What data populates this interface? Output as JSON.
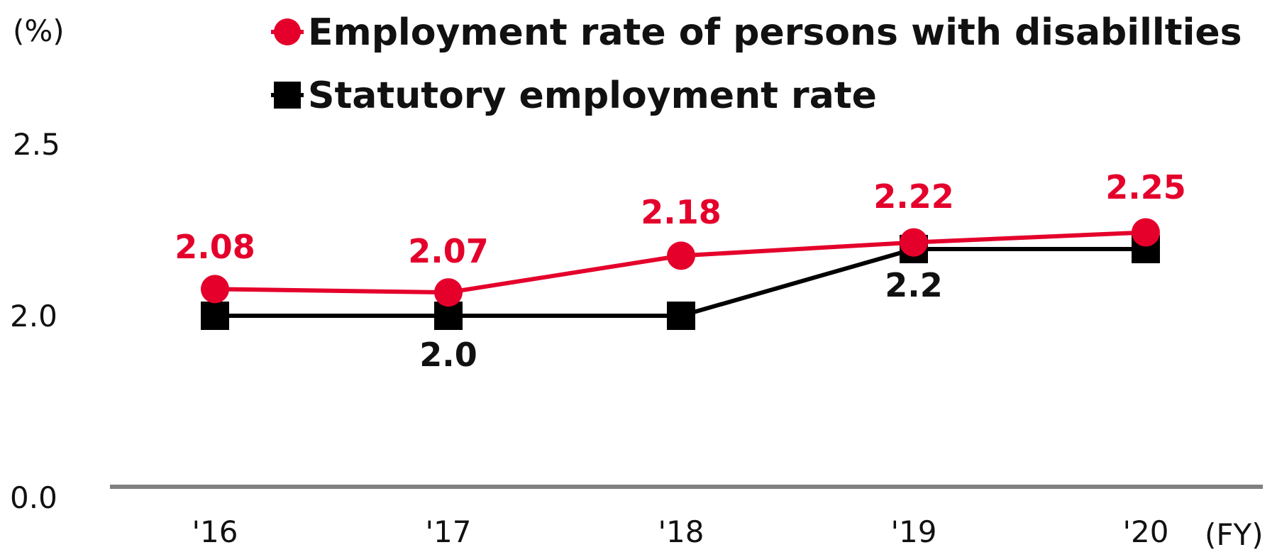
{
  "chart_data": {
    "type": "line",
    "categories": [
      "'16",
      "'17",
      "'18",
      "'19",
      "'20"
    ],
    "unit_label": "(%)",
    "x_unit_label": "(FY)",
    "y_ticks": [
      "0.0",
      "2.0",
      "2.5"
    ],
    "series": [
      {
        "name": "Employment rate of persons with disabillties",
        "color": "#e4002b",
        "marker": "circle",
        "values": [
          2.08,
          2.07,
          2.18,
          2.22,
          2.25
        ],
        "labels": [
          "2.08",
          "2.07",
          "2.18",
          "2.22",
          "2.25"
        ]
      },
      {
        "name": "Statutory employment rate",
        "color": "#000000",
        "marker": "square",
        "values": [
          2.0,
          2.0,
          2.0,
          2.2,
          2.2
        ],
        "labels": [
          "2.0",
          "2.2"
        ]
      }
    ],
    "axis_color": "#808080"
  }
}
